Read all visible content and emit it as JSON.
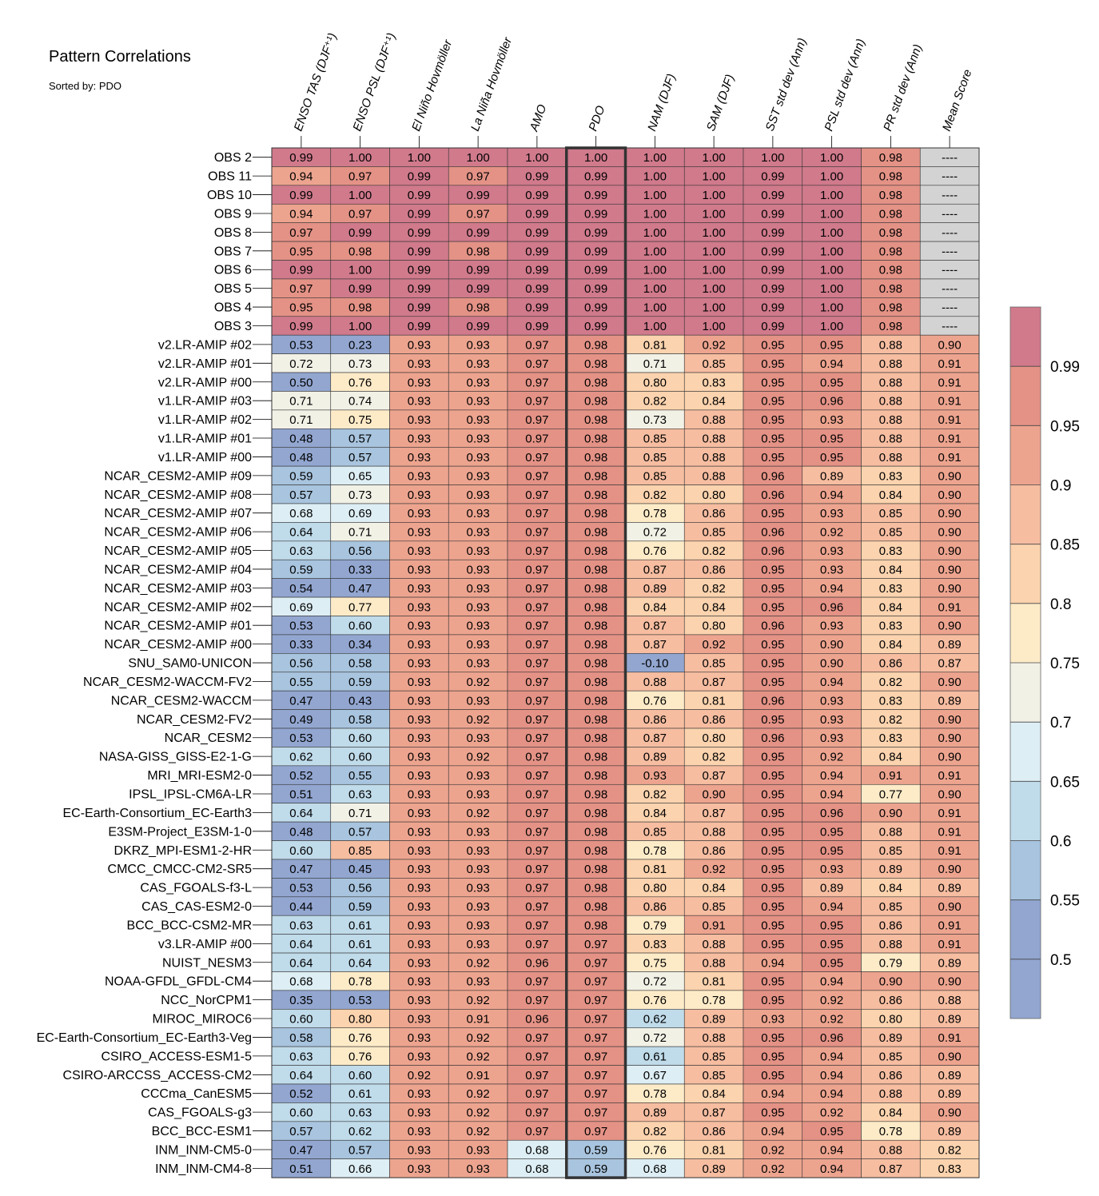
{
  "title": "Pattern Correlations",
  "subtitle": "Sorted by: PDO",
  "chart_data": {
    "type": "heatmap",
    "title": "Pattern Correlations",
    "subtitle": "Sorted by: PDO",
    "columns": [
      "ENSO TAS (DJF⁺¹)",
      "ENSO PSL (DJF⁺¹)",
      "El Niño Hovmöller",
      "La Niña Hovmöller",
      "AMO",
      "PDO",
      "NAM (DJF)",
      "SAM (DJF)",
      "SST std dev (Ann)",
      "PSL std dev (Ann)",
      "PR std dev (Ann)",
      "Mean Score"
    ],
    "highlighted_column": "PDO",
    "rows": [
      {
        "name": "OBS 2",
        "values": [
          "0.99",
          "1.00",
          "1.00",
          "1.00",
          "1.00",
          "1.00",
          "1.00",
          "1.00",
          "1.00",
          "1.00",
          "0.98",
          "----"
        ]
      },
      {
        "name": "OBS 11",
        "values": [
          "0.94",
          "0.97",
          "0.99",
          "0.97",
          "0.99",
          "0.99",
          "1.00",
          "1.00",
          "0.99",
          "1.00",
          "0.98",
          "----"
        ]
      },
      {
        "name": "OBS 10",
        "values": [
          "0.99",
          "1.00",
          "0.99",
          "0.99",
          "0.99",
          "0.99",
          "1.00",
          "1.00",
          "0.99",
          "1.00",
          "0.98",
          "----"
        ]
      },
      {
        "name": "OBS 9",
        "values": [
          "0.94",
          "0.97",
          "0.99",
          "0.97",
          "0.99",
          "0.99",
          "1.00",
          "1.00",
          "0.99",
          "1.00",
          "0.98",
          "----"
        ]
      },
      {
        "name": "OBS 8",
        "values": [
          "0.97",
          "0.99",
          "0.99",
          "0.99",
          "0.99",
          "0.99",
          "1.00",
          "1.00",
          "0.99",
          "1.00",
          "0.98",
          "----"
        ]
      },
      {
        "name": "OBS 7",
        "values": [
          "0.95",
          "0.98",
          "0.99",
          "0.98",
          "0.99",
          "0.99",
          "1.00",
          "1.00",
          "0.99",
          "1.00",
          "0.98",
          "----"
        ]
      },
      {
        "name": "OBS 6",
        "values": [
          "0.99",
          "1.00",
          "0.99",
          "0.99",
          "0.99",
          "0.99",
          "1.00",
          "1.00",
          "0.99",
          "1.00",
          "0.98",
          "----"
        ]
      },
      {
        "name": "OBS 5",
        "values": [
          "0.97",
          "0.99",
          "0.99",
          "0.99",
          "0.99",
          "0.99",
          "1.00",
          "1.00",
          "0.99",
          "1.00",
          "0.98",
          "----"
        ]
      },
      {
        "name": "OBS 4",
        "values": [
          "0.95",
          "0.98",
          "0.99",
          "0.98",
          "0.99",
          "0.99",
          "1.00",
          "1.00",
          "0.99",
          "1.00",
          "0.98",
          "----"
        ]
      },
      {
        "name": "OBS 3",
        "values": [
          "0.99",
          "1.00",
          "0.99",
          "0.99",
          "0.99",
          "0.99",
          "1.00",
          "1.00",
          "0.99",
          "1.00",
          "0.98",
          "----"
        ]
      },
      {
        "name": "v2.LR-AMIP  #02",
        "values": [
          "0.53",
          "0.23",
          "0.93",
          "0.93",
          "0.97",
          "0.98",
          "0.81",
          "0.92",
          "0.95",
          "0.95",
          "0.88",
          "0.90"
        ]
      },
      {
        "name": "v2.LR-AMIP  #01",
        "values": [
          "0.72",
          "0.73",
          "0.93",
          "0.93",
          "0.97",
          "0.98",
          "0.71",
          "0.85",
          "0.95",
          "0.94",
          "0.88",
          "0.91"
        ]
      },
      {
        "name": "v2.LR-AMIP  #00",
        "values": [
          "0.50",
          "0.76",
          "0.93",
          "0.93",
          "0.97",
          "0.98",
          "0.80",
          "0.83",
          "0.95",
          "0.95",
          "0.88",
          "0.91"
        ]
      },
      {
        "name": "v1.LR-AMIP  #03",
        "values": [
          "0.71",
          "0.74",
          "0.93",
          "0.93",
          "0.97",
          "0.98",
          "0.82",
          "0.84",
          "0.95",
          "0.96",
          "0.88",
          "0.91"
        ]
      },
      {
        "name": "v1.LR-AMIP  #02",
        "values": [
          "0.71",
          "0.75",
          "0.93",
          "0.93",
          "0.97",
          "0.98",
          "0.73",
          "0.88",
          "0.95",
          "0.93",
          "0.88",
          "0.91"
        ]
      },
      {
        "name": "v1.LR-AMIP  #01",
        "values": [
          "0.48",
          "0.57",
          "0.93",
          "0.93",
          "0.97",
          "0.98",
          "0.85",
          "0.88",
          "0.95",
          "0.95",
          "0.88",
          "0.91"
        ]
      },
      {
        "name": "v1.LR-AMIP  #00",
        "values": [
          "0.48",
          "0.57",
          "0.93",
          "0.93",
          "0.97",
          "0.98",
          "0.85",
          "0.88",
          "0.95",
          "0.95",
          "0.88",
          "0.91"
        ]
      },
      {
        "name": "NCAR_CESM2-AMIP  #09",
        "values": [
          "0.59",
          "0.65",
          "0.93",
          "0.93",
          "0.97",
          "0.98",
          "0.85",
          "0.88",
          "0.96",
          "0.89",
          "0.83",
          "0.90"
        ]
      },
      {
        "name": "NCAR_CESM2-AMIP  #08",
        "values": [
          "0.57",
          "0.73",
          "0.93",
          "0.93",
          "0.97",
          "0.98",
          "0.82",
          "0.80",
          "0.96",
          "0.94",
          "0.84",
          "0.90"
        ]
      },
      {
        "name": "NCAR_CESM2-AMIP  #07",
        "values": [
          "0.68",
          "0.69",
          "0.93",
          "0.93",
          "0.97",
          "0.98",
          "0.78",
          "0.86",
          "0.95",
          "0.93",
          "0.85",
          "0.90"
        ]
      },
      {
        "name": "NCAR_CESM2-AMIP  #06",
        "values": [
          "0.64",
          "0.71",
          "0.93",
          "0.93",
          "0.97",
          "0.98",
          "0.72",
          "0.85",
          "0.96",
          "0.92",
          "0.85",
          "0.90"
        ]
      },
      {
        "name": "NCAR_CESM2-AMIP  #05",
        "values": [
          "0.63",
          "0.56",
          "0.93",
          "0.93",
          "0.97",
          "0.98",
          "0.76",
          "0.82",
          "0.96",
          "0.93",
          "0.83",
          "0.90"
        ]
      },
      {
        "name": "NCAR_CESM2-AMIP  #04",
        "values": [
          "0.59",
          "0.33",
          "0.93",
          "0.93",
          "0.97",
          "0.98",
          "0.87",
          "0.86",
          "0.95",
          "0.93",
          "0.84",
          "0.90"
        ]
      },
      {
        "name": "NCAR_CESM2-AMIP  #03",
        "values": [
          "0.54",
          "0.47",
          "0.93",
          "0.93",
          "0.97",
          "0.98",
          "0.89",
          "0.82",
          "0.95",
          "0.94",
          "0.83",
          "0.90"
        ]
      },
      {
        "name": "NCAR_CESM2-AMIP  #02",
        "values": [
          "0.69",
          "0.77",
          "0.93",
          "0.93",
          "0.97",
          "0.98",
          "0.84",
          "0.84",
          "0.95",
          "0.96",
          "0.84",
          "0.91"
        ]
      },
      {
        "name": "NCAR_CESM2-AMIP  #01",
        "values": [
          "0.53",
          "0.60",
          "0.93",
          "0.93",
          "0.97",
          "0.98",
          "0.87",
          "0.80",
          "0.96",
          "0.93",
          "0.83",
          "0.90"
        ]
      },
      {
        "name": "NCAR_CESM2-AMIP  #00",
        "values": [
          "0.33",
          "0.34",
          "0.93",
          "0.93",
          "0.97",
          "0.98",
          "0.87",
          "0.92",
          "0.95",
          "0.90",
          "0.84",
          "0.89"
        ]
      },
      {
        "name": "SNU_SAM0-UNICON",
        "values": [
          "0.56",
          "0.58",
          "0.93",
          "0.93",
          "0.97",
          "0.98",
          "-0.10",
          "0.85",
          "0.95",
          "0.90",
          "0.86",
          "0.87"
        ]
      },
      {
        "name": "NCAR_CESM2-WACCM-FV2",
        "values": [
          "0.55",
          "0.59",
          "0.93",
          "0.92",
          "0.97",
          "0.98",
          "0.88",
          "0.87",
          "0.95",
          "0.94",
          "0.82",
          "0.90"
        ]
      },
      {
        "name": "NCAR_CESM2-WACCM",
        "values": [
          "0.47",
          "0.43",
          "0.93",
          "0.93",
          "0.97",
          "0.98",
          "0.76",
          "0.81",
          "0.96",
          "0.93",
          "0.83",
          "0.89"
        ]
      },
      {
        "name": "NCAR_CESM2-FV2",
        "values": [
          "0.49",
          "0.58",
          "0.93",
          "0.92",
          "0.97",
          "0.98",
          "0.86",
          "0.86",
          "0.95",
          "0.93",
          "0.82",
          "0.90"
        ]
      },
      {
        "name": "NCAR_CESM2",
        "values": [
          "0.53",
          "0.60",
          "0.93",
          "0.93",
          "0.97",
          "0.98",
          "0.87",
          "0.80",
          "0.96",
          "0.93",
          "0.83",
          "0.90"
        ]
      },
      {
        "name": "NASA-GISS_GISS-E2-1-G",
        "values": [
          "0.62",
          "0.60",
          "0.93",
          "0.92",
          "0.97",
          "0.98",
          "0.89",
          "0.82",
          "0.95",
          "0.92",
          "0.84",
          "0.90"
        ]
      },
      {
        "name": "MRI_MRI-ESM2-0",
        "values": [
          "0.52",
          "0.55",
          "0.93",
          "0.93",
          "0.97",
          "0.98",
          "0.93",
          "0.87",
          "0.95",
          "0.94",
          "0.91",
          "0.91"
        ]
      },
      {
        "name": "IPSL_IPSL-CM6A-LR",
        "values": [
          "0.51",
          "0.63",
          "0.93",
          "0.93",
          "0.97",
          "0.98",
          "0.82",
          "0.90",
          "0.95",
          "0.94",
          "0.77",
          "0.90"
        ]
      },
      {
        "name": "EC-Earth-Consortium_EC-Earth3",
        "values": [
          "0.64",
          "0.71",
          "0.93",
          "0.92",
          "0.97",
          "0.98",
          "0.84",
          "0.87",
          "0.95",
          "0.96",
          "0.90",
          "0.91"
        ]
      },
      {
        "name": "E3SM-Project_E3SM-1-0",
        "values": [
          "0.48",
          "0.57",
          "0.93",
          "0.93",
          "0.97",
          "0.98",
          "0.85",
          "0.88",
          "0.95",
          "0.95",
          "0.88",
          "0.91"
        ]
      },
      {
        "name": "DKRZ_MPI-ESM1-2-HR",
        "values": [
          "0.60",
          "0.85",
          "0.93",
          "0.93",
          "0.97",
          "0.98",
          "0.78",
          "0.86",
          "0.95",
          "0.95",
          "0.85",
          "0.91"
        ]
      },
      {
        "name": "CMCC_CMCC-CM2-SR5",
        "values": [
          "0.47",
          "0.45",
          "0.93",
          "0.93",
          "0.97",
          "0.98",
          "0.81",
          "0.92",
          "0.95",
          "0.93",
          "0.89",
          "0.90"
        ]
      },
      {
        "name": "CAS_FGOALS-f3-L",
        "values": [
          "0.53",
          "0.56",
          "0.93",
          "0.93",
          "0.97",
          "0.98",
          "0.80",
          "0.84",
          "0.95",
          "0.89",
          "0.84",
          "0.89"
        ]
      },
      {
        "name": "CAS_CAS-ESM2-0",
        "values": [
          "0.44",
          "0.59",
          "0.93",
          "0.93",
          "0.97",
          "0.98",
          "0.86",
          "0.85",
          "0.95",
          "0.94",
          "0.85",
          "0.90"
        ]
      },
      {
        "name": "BCC_BCC-CSM2-MR",
        "values": [
          "0.63",
          "0.61",
          "0.93",
          "0.93",
          "0.97",
          "0.98",
          "0.79",
          "0.91",
          "0.95",
          "0.95",
          "0.86",
          "0.91"
        ]
      },
      {
        "name": "v3.LR-AMIP  #00",
        "values": [
          "0.64",
          "0.61",
          "0.93",
          "0.93",
          "0.97",
          "0.97",
          "0.83",
          "0.88",
          "0.95",
          "0.95",
          "0.88",
          "0.91"
        ]
      },
      {
        "name": "NUIST_NESM3",
        "values": [
          "0.64",
          "0.64",
          "0.93",
          "0.92",
          "0.96",
          "0.97",
          "0.75",
          "0.88",
          "0.94",
          "0.95",
          "0.79",
          "0.89"
        ]
      },
      {
        "name": "NOAA-GFDL_GFDL-CM4",
        "values": [
          "0.68",
          "0.78",
          "0.93",
          "0.93",
          "0.97",
          "0.97",
          "0.72",
          "0.81",
          "0.95",
          "0.94",
          "0.90",
          "0.90"
        ]
      },
      {
        "name": "NCC_NorCPM1",
        "values": [
          "0.35",
          "0.53",
          "0.93",
          "0.92",
          "0.97",
          "0.97",
          "0.76",
          "0.78",
          "0.95",
          "0.92",
          "0.86",
          "0.88"
        ]
      },
      {
        "name": "MIROC_MIROC6",
        "values": [
          "0.60",
          "0.80",
          "0.93",
          "0.91",
          "0.96",
          "0.97",
          "0.62",
          "0.89",
          "0.93",
          "0.92",
          "0.80",
          "0.89"
        ]
      },
      {
        "name": "EC-Earth-Consortium_EC-Earth3-Veg",
        "values": [
          "0.58",
          "0.76",
          "0.93",
          "0.92",
          "0.97",
          "0.97",
          "0.72",
          "0.88",
          "0.95",
          "0.96",
          "0.89",
          "0.91"
        ]
      },
      {
        "name": "CSIRO_ACCESS-ESM1-5",
        "values": [
          "0.63",
          "0.76",
          "0.93",
          "0.92",
          "0.97",
          "0.97",
          "0.61",
          "0.85",
          "0.95",
          "0.94",
          "0.85",
          "0.90"
        ]
      },
      {
        "name": "CSIRO-ARCCSS_ACCESS-CM2",
        "values": [
          "0.64",
          "0.60",
          "0.92",
          "0.91",
          "0.97",
          "0.97",
          "0.67",
          "0.85",
          "0.95",
          "0.94",
          "0.86",
          "0.89"
        ]
      },
      {
        "name": "CCCma_CanESM5",
        "values": [
          "0.52",
          "0.61",
          "0.93",
          "0.92",
          "0.97",
          "0.97",
          "0.78",
          "0.84",
          "0.94",
          "0.94",
          "0.88",
          "0.89"
        ]
      },
      {
        "name": "CAS_FGOALS-g3",
        "values": [
          "0.60",
          "0.63",
          "0.93",
          "0.92",
          "0.97",
          "0.97",
          "0.89",
          "0.87",
          "0.95",
          "0.92",
          "0.84",
          "0.90"
        ]
      },
      {
        "name": "BCC_BCC-ESM1",
        "values": [
          "0.57",
          "0.62",
          "0.93",
          "0.92",
          "0.97",
          "0.97",
          "0.82",
          "0.86",
          "0.94",
          "0.95",
          "0.78",
          "0.89"
        ]
      },
      {
        "name": "INM_INM-CM5-0",
        "values": [
          "0.47",
          "0.57",
          "0.93",
          "0.93",
          "0.68",
          "0.59",
          "0.76",
          "0.81",
          "0.92",
          "0.94",
          "0.88",
          "0.82"
        ]
      },
      {
        "name": "INM_INM-CM4-8",
        "values": [
          "0.51",
          "0.66",
          "0.93",
          "0.93",
          "0.68",
          "0.59",
          "0.68",
          "0.89",
          "0.92",
          "0.94",
          "0.87",
          "0.83"
        ]
      }
    ],
    "colorbar": {
      "ticks": [
        "0.99",
        "0.95",
        "0.9",
        "0.85",
        "0.8",
        "0.75",
        "0.7",
        "0.65",
        "0.6",
        "0.55",
        "0.5"
      ],
      "colors": [
        "#d07a8c",
        "#e49286",
        "#eda48f",
        "#f6bda1",
        "#fbd3ae",
        "#fdebc8",
        "#f2f1e6",
        "#ddeef4",
        "#c0dbea",
        "#a8c4de",
        "#92a6d0",
        "#d3d3d3"
      ]
    }
  }
}
